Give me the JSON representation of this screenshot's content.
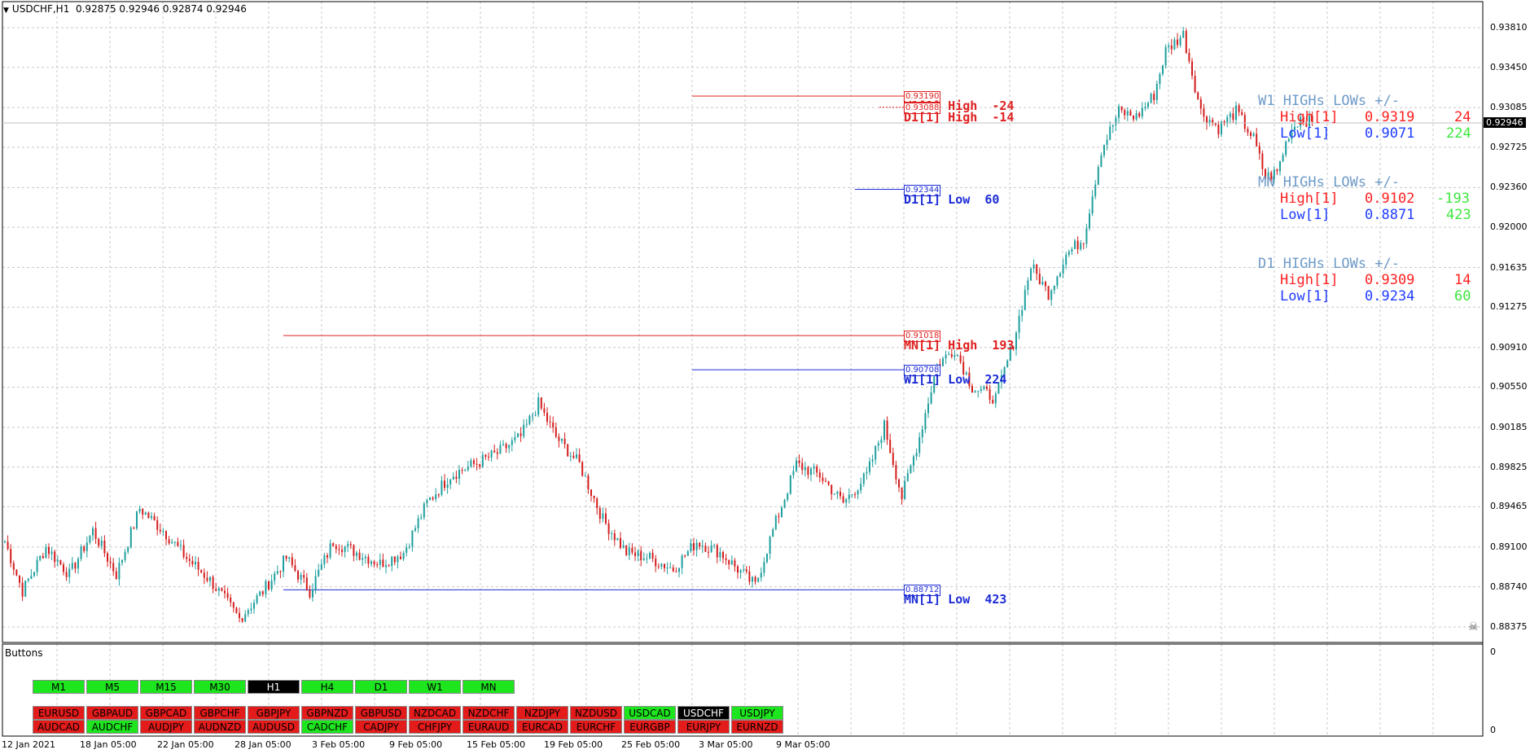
{
  "header": {
    "symbol": "USDCHF,H1",
    "quotes": "0.92875 0.92946 0.92874 0.92946"
  },
  "price_axis": [
    "0.93810",
    "0.93450",
    "0.93085",
    "0.92725",
    "0.92360",
    "0.92000",
    "0.91635",
    "0.91275",
    "0.90910",
    "0.90550",
    "0.90185",
    "0.89825",
    "0.89465",
    "0.89100",
    "0.88740",
    "0.88375"
  ],
  "current_price": "0.92946",
  "time_axis": [
    "12 Jan 2021",
    "18 Jan 05:00",
    "22 Jan 05:00",
    "28 Jan 05:00",
    "3 Feb 05:00",
    "9 Feb 05:00",
    "15 Feb 05:00",
    "19 Feb 05:00",
    "25 Feb 05:00",
    "3 Mar 05:00",
    "9 Mar 05:00"
  ],
  "sub_panel": {
    "title": "Buttons",
    "axis_top": "0",
    "axis_bottom": "0"
  },
  "timeframe_buttons": [
    {
      "label": "M1",
      "state": "green"
    },
    {
      "label": "M5",
      "state": "green"
    },
    {
      "label": "M15",
      "state": "green"
    },
    {
      "label": "M30",
      "state": "green"
    },
    {
      "label": "H1",
      "state": "black"
    },
    {
      "label": "H4",
      "state": "green"
    },
    {
      "label": "D1",
      "state": "green"
    },
    {
      "label": "W1",
      "state": "green"
    },
    {
      "label": "MN",
      "state": "green"
    }
  ],
  "pair_buttons_row1": [
    {
      "label": "EURUSD",
      "state": "red"
    },
    {
      "label": "GBPAUD",
      "state": "red"
    },
    {
      "label": "GBPCAD",
      "state": "red"
    },
    {
      "label": "GBPCHF",
      "state": "red"
    },
    {
      "label": "GBPJPY",
      "state": "red"
    },
    {
      "label": "GBPNZD",
      "state": "red"
    },
    {
      "label": "GBPUSD",
      "state": "red"
    },
    {
      "label": "NZDCAD",
      "state": "red"
    },
    {
      "label": "NZDCHF",
      "state": "red"
    },
    {
      "label": "NZDJPY",
      "state": "red"
    },
    {
      "label": "NZDUSD",
      "state": "red"
    },
    {
      "label": "USDCAD",
      "state": "green"
    },
    {
      "label": "USDCHF",
      "state": "black"
    },
    {
      "label": "USDJPY",
      "state": "green"
    }
  ],
  "pair_buttons_row2": [
    {
      "label": "AUDCAD",
      "state": "red"
    },
    {
      "label": "AUDCHF",
      "state": "green"
    },
    {
      "label": "AUDJPY",
      "state": "red"
    },
    {
      "label": "AUDNZD",
      "state": "red"
    },
    {
      "label": "AUDUSD",
      "state": "red"
    },
    {
      "label": "CADCHF",
      "state": "green"
    },
    {
      "label": "CADJPY",
      "state": "red"
    },
    {
      "label": "CHFJPY",
      "state": "red"
    },
    {
      "label": "EURAUD",
      "state": "red"
    },
    {
      "label": "EURCAD",
      "state": "red"
    },
    {
      "label": "EURCHF",
      "state": "red"
    },
    {
      "label": "EURGBP",
      "state": "red"
    },
    {
      "label": "EURJPY",
      "state": "red"
    },
    {
      "label": "EURNZD",
      "state": "red"
    }
  ],
  "levels": [
    {
      "box": "0.93190",
      "text": "W1[1] High  -24",
      "color": "red",
      "price": 0.9319
    },
    {
      "box": "0.93088",
      "text": "D1[1] High  -14",
      "color": "red",
      "price": 0.93088
    },
    {
      "box": "0.92344",
      "text": "D1[1] Low  60",
      "color": "blue",
      "price": 0.92344
    },
    {
      "box": "0.91018",
      "text": "MN[1] High  193",
      "color": "red",
      "price": 0.91018
    },
    {
      "box": "0.90708",
      "text": "W1[1] Low  224",
      "color": "blue",
      "price": 0.90708
    },
    {
      "box": "0.88712",
      "text": "MN[1] Low  423",
      "color": "blue",
      "price": 0.88712
    }
  ],
  "stats": {
    "w1": {
      "title": "W1 HIGHs LOWs +/-",
      "high_label": "High[1]",
      "high_value": "0.9319",
      "high_diff": "24",
      "low_label": "Low[1]",
      "low_value": "0.9071",
      "low_diff": "224"
    },
    "mn": {
      "title": "MN HIGHs LOWs +/-",
      "high_label": "High[1]",
      "high_value": "0.9102",
      "high_diff": "-193",
      "low_label": "Low[1]",
      "low_value": "0.8871",
      "low_diff": "423"
    },
    "d1": {
      "title": "D1 HIGHs LOWs +/-",
      "high_label": "High[1]",
      "high_value": "0.9309",
      "high_diff": "14",
      "low_label": "Low[1]",
      "low_value": "0.9234",
      "low_diff": "60"
    }
  },
  "chart_data": {
    "type": "candlestick",
    "symbol": "USDCHF",
    "timeframe": "H1",
    "ylim": [
      0.883,
      0.939
    ],
    "anchors": [
      {
        "t": 0,
        "p": 0.8915
      },
      {
        "t": 6,
        "p": 0.887
      },
      {
        "t": 14,
        "p": 0.891
      },
      {
        "t": 22,
        "p": 0.8885
      },
      {
        "t": 30,
        "p": 0.8925
      },
      {
        "t": 38,
        "p": 0.8885
      },
      {
        "t": 46,
        "p": 0.8945
      },
      {
        "t": 54,
        "p": 0.8925
      },
      {
        "t": 62,
        "p": 0.89
      },
      {
        "t": 70,
        "p": 0.888
      },
      {
        "t": 80,
        "p": 0.8845
      },
      {
        "t": 88,
        "p": 0.887
      },
      {
        "t": 96,
        "p": 0.89
      },
      {
        "t": 104,
        "p": 0.887
      },
      {
        "t": 112,
        "p": 0.8915
      },
      {
        "t": 120,
        "p": 0.8905
      },
      {
        "t": 128,
        "p": 0.8895
      },
      {
        "t": 136,
        "p": 0.8905
      },
      {
        "t": 144,
        "p": 0.895
      },
      {
        "t": 152,
        "p": 0.8975
      },
      {
        "t": 160,
        "p": 0.8985
      },
      {
        "t": 168,
        "p": 0.8995
      },
      {
        "t": 176,
        "p": 0.901
      },
      {
        "t": 182,
        "p": 0.904
      },
      {
        "t": 188,
        "p": 0.901
      },
      {
        "t": 196,
        "p": 0.8985
      },
      {
        "t": 204,
        "p": 0.8935
      },
      {
        "t": 212,
        "p": 0.8905
      },
      {
        "t": 220,
        "p": 0.89
      },
      {
        "t": 228,
        "p": 0.889
      },
      {
        "t": 236,
        "p": 0.8915
      },
      {
        "t": 244,
        "p": 0.8905
      },
      {
        "t": 252,
        "p": 0.8885
      },
      {
        "t": 256,
        "p": 0.8875
      },
      {
        "t": 262,
        "p": 0.8925
      },
      {
        "t": 270,
        "p": 0.8985
      },
      {
        "t": 278,
        "p": 0.8975
      },
      {
        "t": 286,
        "p": 0.895
      },
      {
        "t": 294,
        "p": 0.8975
      },
      {
        "t": 300,
        "p": 0.902
      },
      {
        "t": 306,
        "p": 0.8955
      },
      {
        "t": 312,
        "p": 0.901
      },
      {
        "t": 318,
        "p": 0.9075
      },
      {
        "t": 324,
        "p": 0.909
      },
      {
        "t": 330,
        "p": 0.9055
      },
      {
        "t": 338,
        "p": 0.9045
      },
      {
        "t": 344,
        "p": 0.9095
      },
      {
        "t": 350,
        "p": 0.9165
      },
      {
        "t": 356,
        "p": 0.914
      },
      {
        "t": 362,
        "p": 0.9175
      },
      {
        "t": 368,
        "p": 0.919
      },
      {
        "t": 374,
        "p": 0.927
      },
      {
        "t": 380,
        "p": 0.9305
      },
      {
        "t": 386,
        "p": 0.93
      },
      {
        "t": 392,
        "p": 0.932
      },
      {
        "t": 396,
        "p": 0.936
      },
      {
        "t": 402,
        "p": 0.9375
      },
      {
        "t": 408,
        "p": 0.9305
      },
      {
        "t": 414,
        "p": 0.929
      },
      {
        "t": 420,
        "p": 0.9305
      },
      {
        "t": 426,
        "p": 0.928
      },
      {
        "t": 430,
        "p": 0.9245
      },
      {
        "t": 434,
        "p": 0.925
      },
      {
        "t": 438,
        "p": 0.9285
      },
      {
        "t": 442,
        "p": 0.93
      },
      {
        "t": 446,
        "p": 0.9294
      }
    ]
  }
}
